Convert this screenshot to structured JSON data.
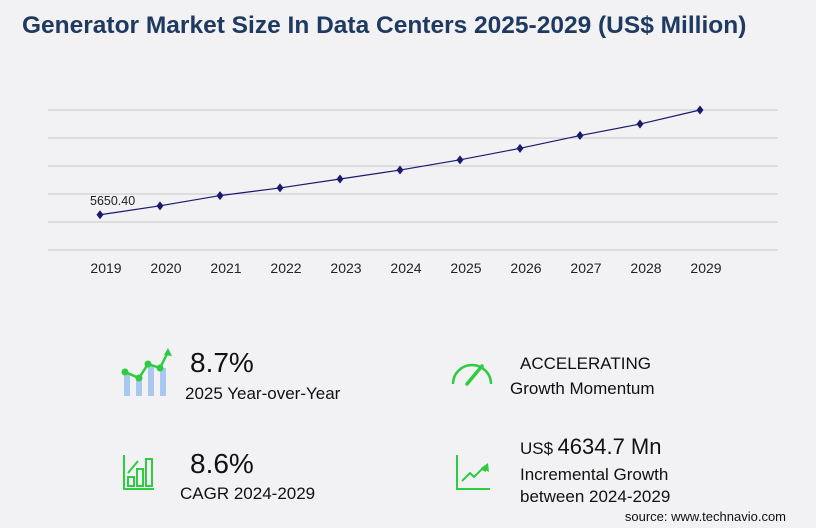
{
  "title": "Generator Market Size In Data Centers 2025-2029 (US$ Million)",
  "chart_data": {
    "type": "line",
    "title": "Generator Market Size In Data Centers 2025-2029 (US$ Million)",
    "categories": [
      "2019",
      "2020",
      "2021",
      "2022",
      "2023",
      "2024",
      "2025",
      "2026",
      "2027",
      "2028",
      "2029"
    ],
    "values": [
      5650.4,
      6341,
      7130,
      7721,
      8411,
      9101,
      9890,
      10778,
      11764,
      12651,
      13736
    ],
    "data_labels": [
      "5650.40"
    ],
    "ylim": [
      2931,
      13736
    ],
    "grid": true,
    "line_color": "#1a1a6e"
  },
  "kpis": {
    "yoy_value": "8.7%",
    "yoy_label": "2025 Year-over-Year",
    "momentum_value": "ACCELERATING",
    "momentum_label": "Growth Momentum",
    "cagr_value": "8.6%",
    "cagr_label": "CAGR 2024-2029",
    "incr_prefix": "US$",
    "incr_value": "4634.7 Mn",
    "incr_label1": "Incremental Growth",
    "incr_label2": "between 2024-2029"
  },
  "source": "source: www.technavio.com",
  "colors": {
    "accent_green": "#2ecc40",
    "bar_blue": "#a9c8f0",
    "title": "#1f3a60"
  }
}
